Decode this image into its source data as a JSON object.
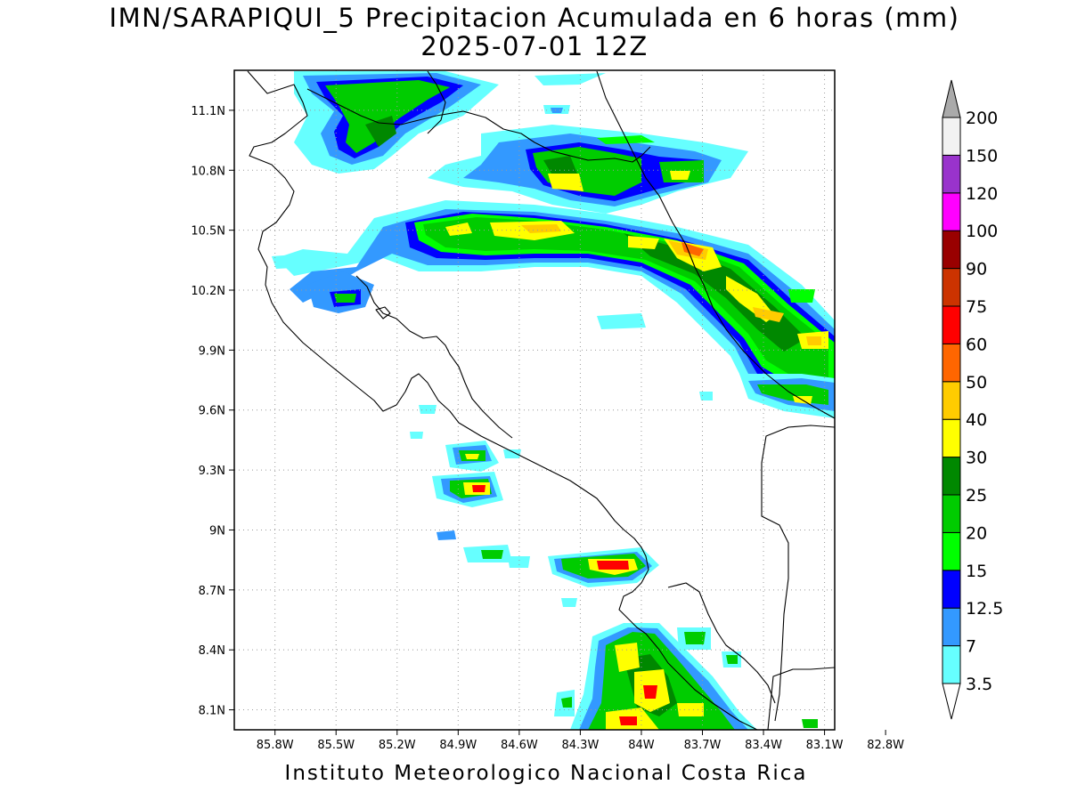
{
  "title": {
    "line1": "IMN/SARAPIQUI_5 Precipitacion Acumulada en 6 horas (mm)",
    "line2": "2025-07-01 12Z"
  },
  "footer": "Instituto Meteorologico Nacional Costa Rica",
  "map": {
    "lon_range": [
      -86.0,
      -83.05
    ],
    "lat_range": [
      8.0,
      11.3
    ],
    "lon_ticks": [
      {
        "value": -85.8,
        "label": "85.8W"
      },
      {
        "value": -85.5,
        "label": "85.5W"
      },
      {
        "value": -85.2,
        "label": "85.2W"
      },
      {
        "value": -84.9,
        "label": "84.9W"
      },
      {
        "value": -84.6,
        "label": "84.6W"
      },
      {
        "value": -84.3,
        "label": "84.3W"
      },
      {
        "value": -84.0,
        "label": "84W"
      },
      {
        "value": -83.7,
        "label": "83.7W"
      },
      {
        "value": -83.4,
        "label": "83.4W"
      },
      {
        "value": -83.1,
        "label": "83.1W"
      },
      {
        "value": -82.8,
        "label": "82.8W"
      }
    ],
    "lat_ticks": [
      {
        "value": 11.1,
        "label": "11.1N"
      },
      {
        "value": 10.8,
        "label": "10.8N"
      },
      {
        "value": 10.5,
        "label": "10.5N"
      },
      {
        "value": 10.2,
        "label": "10.2N"
      },
      {
        "value": 9.9,
        "label": "9.9N"
      },
      {
        "value": 9.6,
        "label": "9.6N"
      },
      {
        "value": 9.3,
        "label": "9.3N"
      },
      {
        "value": 9.0,
        "label": "9N"
      },
      {
        "value": 8.7,
        "label": "8.7N"
      },
      {
        "value": 8.4,
        "label": "8.4N"
      },
      {
        "value": 8.1,
        "label": "8.1N"
      }
    ]
  },
  "colorbar": {
    "levels": [
      {
        "label": "3.5",
        "color": "#66ffff"
      },
      {
        "label": "7",
        "color": "#3399ff"
      },
      {
        "label": "12.5",
        "color": "#0000ff"
      },
      {
        "label": "15",
        "color": "#00ff00"
      },
      {
        "label": "20",
        "color": "#00cc00"
      },
      {
        "label": "25",
        "color": "#008800"
      },
      {
        "label": "30",
        "color": "#ffff00"
      },
      {
        "label": "40",
        "color": "#ffcc00"
      },
      {
        "label": "50",
        "color": "#ff6600"
      },
      {
        "label": "60",
        "color": "#ff0000"
      },
      {
        "label": "75",
        "color": "#cc3300"
      },
      {
        "label": "90",
        "color": "#990000"
      },
      {
        "label": "100",
        "color": "#ff00ff"
      },
      {
        "label": "120",
        "color": "#9933cc"
      },
      {
        "label": "150",
        "color": "#f2f2f2"
      },
      {
        "label": "200",
        "color": "#aaaaaa"
      }
    ]
  }
}
